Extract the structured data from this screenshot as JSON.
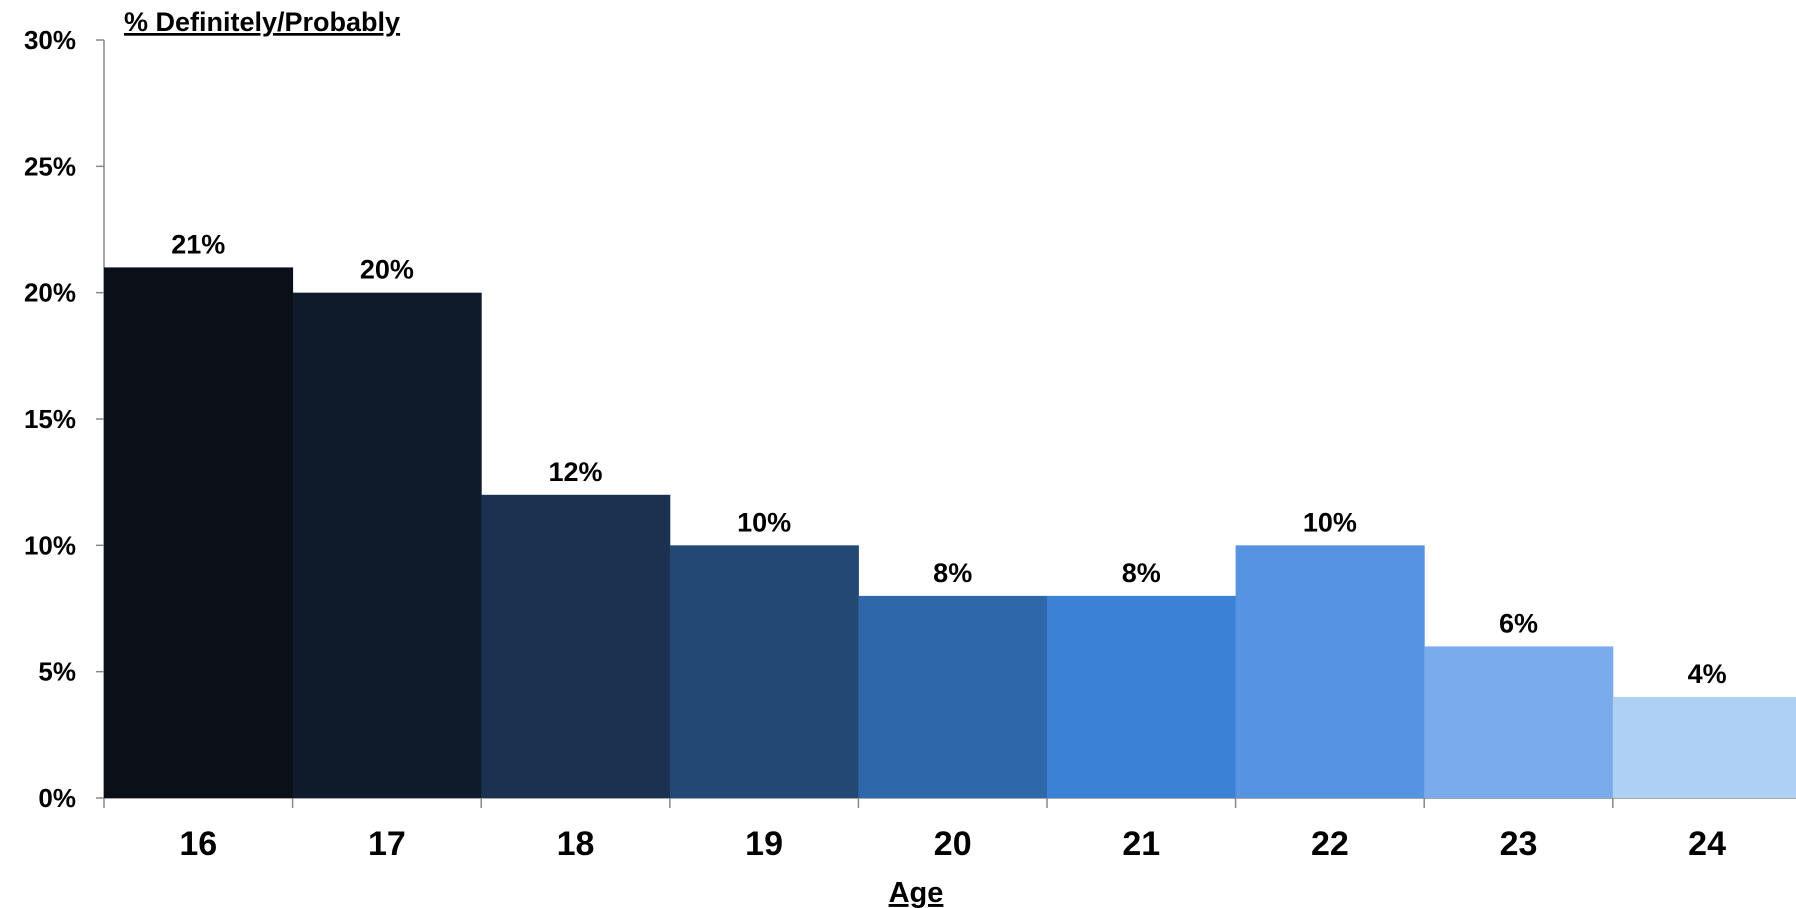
{
  "chart_data": {
    "type": "bar",
    "title": "% Definitely/Probably",
    "xlabel": "Age",
    "ylabel": "",
    "categories": [
      "16",
      "17",
      "18",
      "19",
      "20",
      "21",
      "22",
      "23",
      "24"
    ],
    "values": [
      21,
      20,
      12,
      10,
      8,
      8,
      10,
      6,
      4
    ],
    "data_labels": [
      "21%",
      "20%",
      "12%",
      "10%",
      "8%",
      "8%",
      "10%",
      "6%",
      "4%"
    ],
    "ylim": [
      0,
      30
    ],
    "yticks": [
      "0%",
      "5%",
      "10%",
      "15%",
      "20%",
      "25%",
      "30%"
    ],
    "grid": false,
    "legend": "none",
    "bar_colors": [
      "#0b0f18",
      "#0f1a2a",
      "#1a3150",
      "#244874",
      "#2e68aa",
      "#3b82d6",
      "#5694e2",
      "#7aabea",
      "#afd0f5"
    ]
  }
}
